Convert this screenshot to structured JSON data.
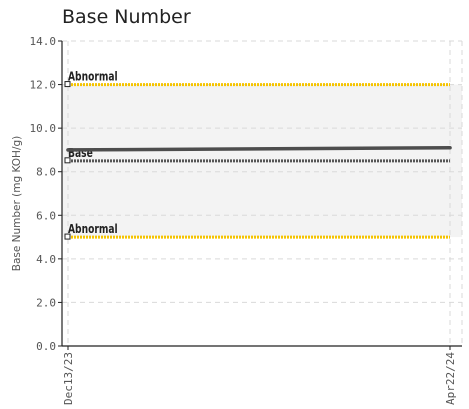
{
  "chart_data": {
    "type": "line",
    "title": "Base Number",
    "xlabel": "",
    "ylabel": "Base Number (mg KOH/g)",
    "x_categories": [
      "Dec13/23",
      "Apr22/24"
    ],
    "ylim": [
      0,
      14
    ],
    "y_ticks": [
      {
        "value": 0,
        "label": "0.0"
      },
      {
        "value": 2,
        "label": "2.0"
      },
      {
        "value": 4,
        "label": "4.0"
      },
      {
        "value": 6,
        "label": "6.0"
      },
      {
        "value": 8,
        "label": "8.0"
      },
      {
        "value": 10,
        "label": "10.0"
      },
      {
        "value": 12,
        "label": "12.0"
      },
      {
        "value": 14,
        "label": "14.0"
      }
    ],
    "shaded_bands": [
      [
        5,
        12
      ]
    ],
    "grid": true,
    "series": [
      {
        "values": [
          9.0,
          9.1
        ],
        "color": "#4d4d4d",
        "style": "solid"
      }
    ],
    "reference_lines": [
      {
        "label": "Abnormal",
        "value": 12,
        "color": "#f5c400",
        "style": "dotted"
      },
      {
        "label": "Base",
        "value": 8.5,
        "color": "#555555",
        "style": "dotted"
      },
      {
        "label": "Abnormal",
        "value": 5,
        "color": "#f5c400",
        "style": "dotted"
      }
    ]
  }
}
